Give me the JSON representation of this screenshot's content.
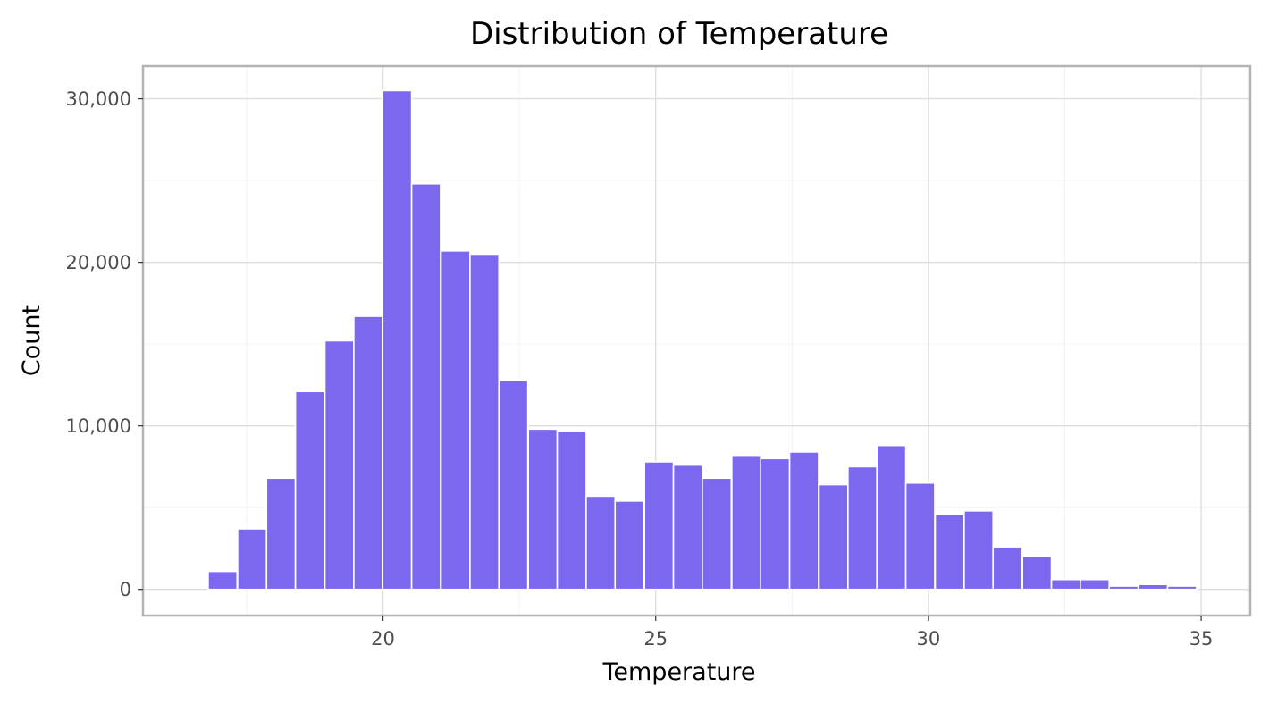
{
  "chart_data": {
    "type": "bar",
    "title": "Distribution of Temperature",
    "xlabel": "Temperature",
    "ylabel": "Count",
    "bar_color": "#7b68ee",
    "bar_edge_color": "#ffffff",
    "bin_width": 0.53,
    "xlim": [
      15.6,
      35.9
    ],
    "ylim": [
      -1600,
      32000
    ],
    "x_ticks": [
      20,
      25,
      30,
      35
    ],
    "x_tick_labels": [
      "20",
      "25",
      "30",
      "35"
    ],
    "y_ticks": [
      0,
      10000,
      20000,
      30000
    ],
    "y_tick_labels": [
      "0",
      "10,000",
      "20,000",
      "30,000"
    ],
    "grid": true,
    "legend": "none",
    "bins": [
      {
        "x": 16.53,
        "value": 0
      },
      {
        "x": 17.06,
        "value": 1100
      },
      {
        "x": 17.6,
        "value": 3700
      },
      {
        "x": 18.13,
        "value": 6800
      },
      {
        "x": 18.66,
        "value": 12100
      },
      {
        "x": 19.2,
        "value": 15200
      },
      {
        "x": 19.73,
        "value": 16700
      },
      {
        "x": 20.26,
        "value": 30500
      },
      {
        "x": 20.79,
        "value": 24800
      },
      {
        "x": 21.33,
        "value": 20700
      },
      {
        "x": 21.86,
        "value": 20500
      },
      {
        "x": 22.39,
        "value": 12800
      },
      {
        "x": 22.93,
        "value": 9800
      },
      {
        "x": 23.46,
        "value": 9700
      },
      {
        "x": 23.99,
        "value": 5700
      },
      {
        "x": 24.52,
        "value": 5400
      },
      {
        "x": 25.06,
        "value": 7800
      },
      {
        "x": 25.59,
        "value": 7600
      },
      {
        "x": 26.12,
        "value": 6800
      },
      {
        "x": 26.66,
        "value": 8200
      },
      {
        "x": 27.19,
        "value": 8000
      },
      {
        "x": 27.72,
        "value": 8400
      },
      {
        "x": 28.26,
        "value": 6400
      },
      {
        "x": 28.79,
        "value": 7500
      },
      {
        "x": 29.32,
        "value": 8800
      },
      {
        "x": 29.85,
        "value": 6500
      },
      {
        "x": 30.39,
        "value": 4600
      },
      {
        "x": 30.92,
        "value": 4800
      },
      {
        "x": 31.45,
        "value": 2600
      },
      {
        "x": 31.99,
        "value": 2000
      },
      {
        "x": 32.52,
        "value": 600
      },
      {
        "x": 33.05,
        "value": 600
      },
      {
        "x": 33.58,
        "value": 200
      },
      {
        "x": 34.12,
        "value": 300
      },
      {
        "x": 34.65,
        "value": 200
      }
    ]
  }
}
